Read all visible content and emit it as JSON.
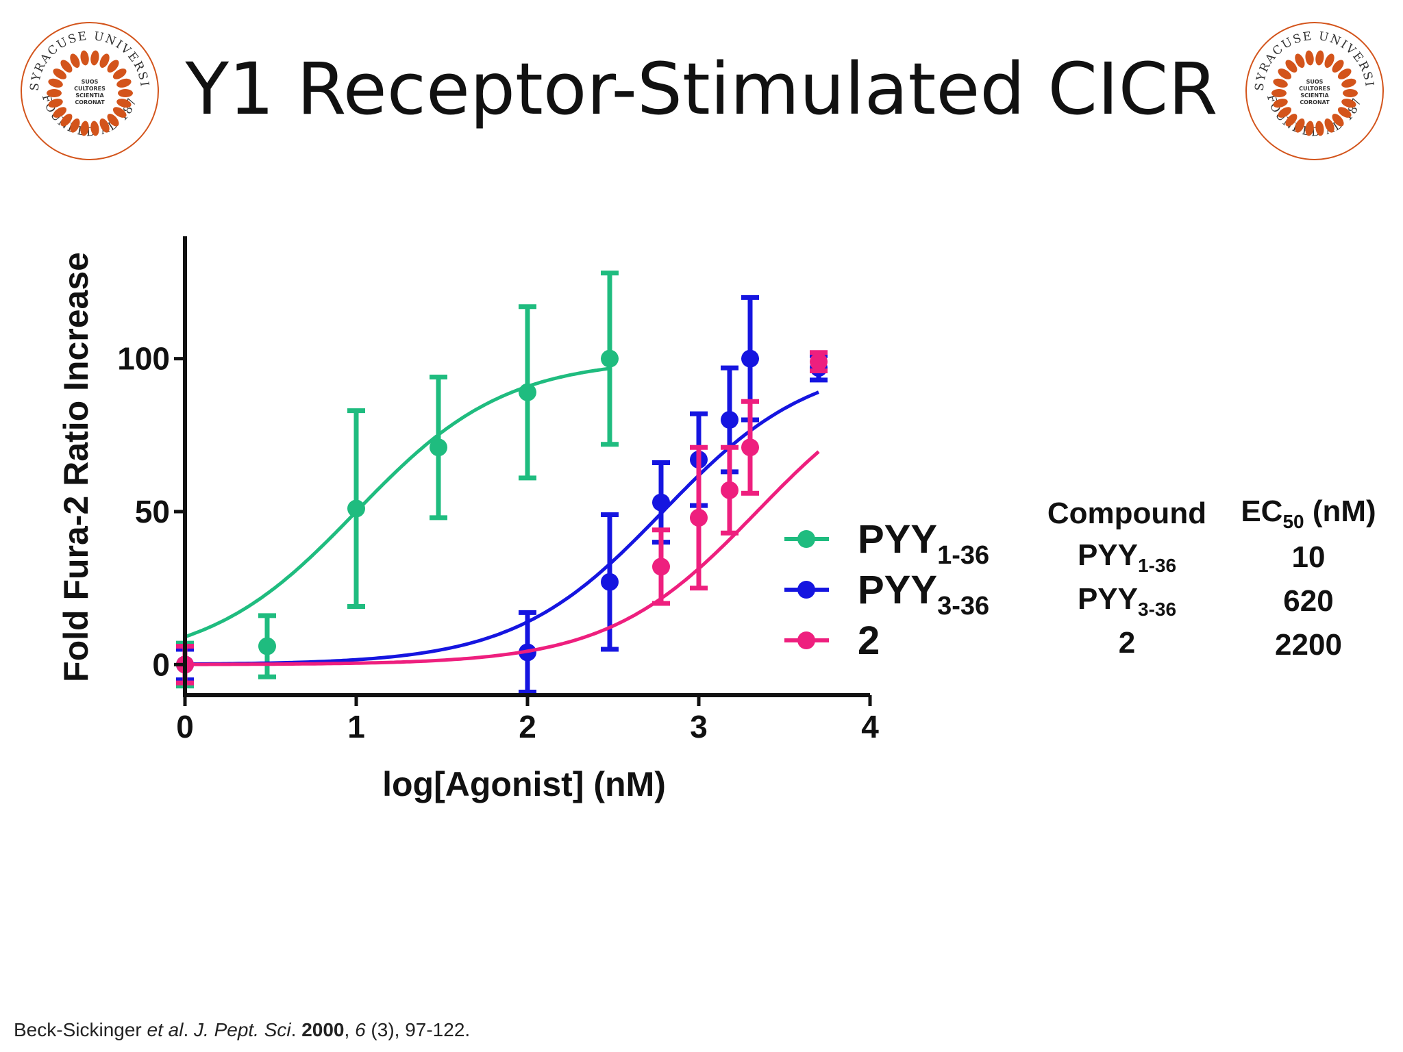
{
  "title": "Y1 Receptor-Stimulated CICR",
  "seal": {
    "ring_text": "SYRACUSE UNIVERSITY",
    "motto": [
      "SUOS",
      "CULTORES",
      "SCIENTIA",
      "CORONAT"
    ],
    "founded": "FOUNDED AD 1870",
    "color": "#d3541b"
  },
  "chart_data": {
    "type": "scatter",
    "xlabel": "log[Agonist] (nM)",
    "ylabel": "Fold Fura-2 Ratio Increase",
    "xlim": [
      0,
      4
    ],
    "ylim": [
      -10,
      140
    ],
    "xticks": [
      "0",
      "1",
      "2",
      "3",
      "4"
    ],
    "yticks": [
      "0",
      "50",
      "100"
    ],
    "xtick_values": [
      0,
      1,
      2,
      3,
      4
    ],
    "ytick_values": [
      0,
      50,
      100
    ],
    "grid": false,
    "legend_position": "right",
    "series": [
      {
        "name": "PYY",
        "name_sub": "1-36",
        "color": "#1fbc7f",
        "ec50_log": 1.0,
        "points": [
          {
            "x": 0,
            "y": 0,
            "err": 7
          },
          {
            "x": 0.48,
            "y": 6,
            "err": 10
          },
          {
            "x": 1.0,
            "y": 51,
            "err": 32
          },
          {
            "x": 1.48,
            "y": 71,
            "err": 23
          },
          {
            "x": 2.0,
            "y": 89,
            "err": 28
          },
          {
            "x": 2.48,
            "y": 100,
            "err": 28
          }
        ]
      },
      {
        "name": "PYY",
        "name_sub": "3-36",
        "color": "#1515e0",
        "ec50_log": 2.79,
        "points": [
          {
            "x": 0,
            "y": 0,
            "err": 5
          },
          {
            "x": 2.0,
            "y": 4,
            "err": 13
          },
          {
            "x": 2.48,
            "y": 27,
            "err": 22
          },
          {
            "x": 2.78,
            "y": 53,
            "err": 13
          },
          {
            "x": 3.0,
            "y": 67,
            "err": 15
          },
          {
            "x": 3.18,
            "y": 80,
            "err": 17
          },
          {
            "x": 3.3,
            "y": 100,
            "err": 20
          },
          {
            "x": 3.7,
            "y": 97,
            "err": 4
          }
        ]
      },
      {
        "name": "2",
        "name_sub": "",
        "color": "#ee1f7e",
        "ec50_log": 3.34,
        "points": [
          {
            "x": 0,
            "y": 0,
            "err": 6
          },
          {
            "x": 2.78,
            "y": 32,
            "err": 12
          },
          {
            "x": 3.0,
            "y": 48,
            "err": 23
          },
          {
            "x": 3.18,
            "y": 57,
            "err": 14
          },
          {
            "x": 3.3,
            "y": 71,
            "err": 15
          },
          {
            "x": 3.7,
            "y": 99,
            "err": 3
          }
        ]
      }
    ]
  },
  "ec_table": {
    "header_compound": "Compound",
    "header_ec": "EC",
    "header_ec_sub": "50",
    "header_ec_unit": " (nM)",
    "rows": [
      {
        "compound": "PYY",
        "sub": "1-36",
        "ec50": "10"
      },
      {
        "compound": "PYY",
        "sub": "3-36",
        "ec50": "620"
      },
      {
        "compound": "2",
        "sub": "",
        "ec50": "2200"
      }
    ]
  },
  "citation": {
    "authors": "Beck-Sickinger ",
    "etal": "et al",
    "dot1": ". ",
    "journal": "J. Pept. Sci",
    "dot2": ". ",
    "year": "2000",
    "comma1": ", ",
    "volume": "6",
    "rest": " (3), 97-122."
  }
}
